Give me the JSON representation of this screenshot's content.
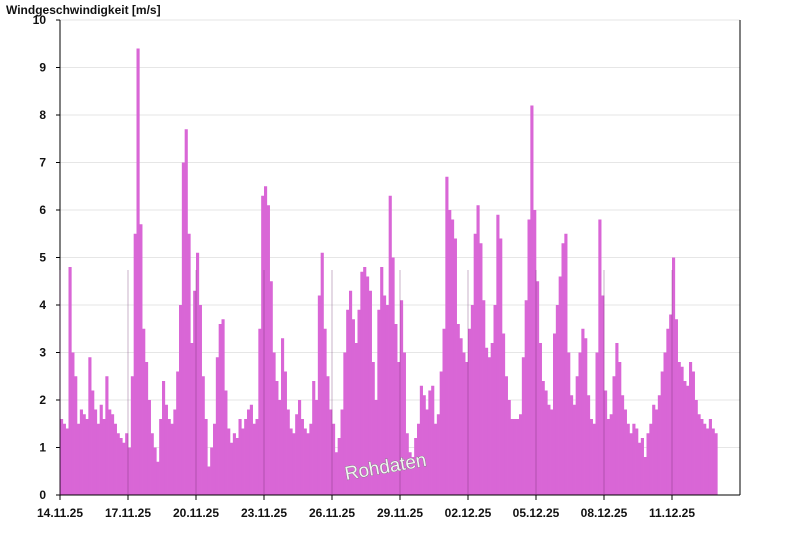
{
  "chart_data": {
    "type": "bar",
    "title": "",
    "ylabel": "Windgeschwindigkeit [m/s]",
    "xlabel": "",
    "ylim": [
      0,
      10
    ],
    "yticks": [
      "0",
      "1",
      "2",
      "3",
      "4",
      "5",
      "6",
      "7",
      "8",
      "9",
      "10"
    ],
    "xlim": [
      "2025-11-14",
      "2025-12-14"
    ],
    "xtick_labels": [
      "14.11.25",
      "17.11.25",
      "20.11.25",
      "23.11.25",
      "26.11.25",
      "29.11.25",
      "02.12.25",
      "05.12.25",
      "08.12.25",
      "11.12.25"
    ],
    "annotation": "Rohdaten",
    "grid": true,
    "series_color": "#d966d6",
    "series": [
      {
        "values_by_date": [
          {
            "date": "2025-11-14",
            "values": [
              1.6,
              1.5,
              1.4,
              4.8,
              3.0,
              2.5,
              1.5,
              1.8
            ]
          },
          {
            "date": "2025-11-15",
            "values": [
              1.7,
              1.6,
              2.9,
              2.2,
              1.8,
              1.5,
              1.9,
              1.6
            ]
          },
          {
            "date": "2025-11-16",
            "values": [
              2.5,
              1.8,
              1.7,
              1.5,
              1.3,
              1.2,
              1.1,
              1.3
            ]
          },
          {
            "date": "2025-11-17",
            "values": [
              1.0,
              2.5,
              5.5,
              9.4,
              5.7,
              3.5,
              2.8,
              2.0
            ]
          },
          {
            "date": "2025-11-18",
            "values": [
              1.3,
              1.0,
              0.7,
              1.6,
              2.4,
              1.9,
              1.6,
              1.5
            ]
          },
          {
            "date": "2025-11-19",
            "values": [
              1.8,
              2.6,
              4.0,
              7.0,
              7.7,
              5.5,
              3.2,
              4.3
            ]
          },
          {
            "date": "2025-11-20",
            "values": [
              5.1,
              4.0,
              2.5,
              1.6,
              0.6,
              1.0,
              1.5,
              2.9
            ]
          },
          {
            "date": "2025-11-21",
            "values": [
              3.6,
              3.7,
              2.2,
              1.4,
              1.1,
              1.3,
              1.2,
              1.6
            ]
          },
          {
            "date": "2025-11-22",
            "values": [
              1.4,
              1.6,
              1.8,
              1.9,
              1.5,
              1.6,
              3.5,
              6.3
            ]
          },
          {
            "date": "2025-11-23",
            "values": [
              6.5,
              6.1,
              4.5,
              3.0,
              2.4,
              2.0,
              3.3,
              2.6
            ]
          },
          {
            "date": "2025-11-24",
            "values": [
              1.8,
              1.4,
              1.3,
              1.7,
              2.0,
              1.6,
              1.4,
              1.3
            ]
          },
          {
            "date": "2025-11-25",
            "values": [
              1.5,
              2.4,
              2.0,
              4.2,
              5.1,
              3.5,
              2.5,
              1.8
            ]
          },
          {
            "date": "2025-11-26",
            "values": [
              1.5,
              0.9,
              1.2,
              1.8,
              3.0,
              3.9,
              4.3,
              3.7
            ]
          },
          {
            "date": "2025-11-27",
            "values": [
              3.2,
              3.9,
              4.7,
              4.8,
              4.6,
              4.3,
              2.8,
              2.0
            ]
          },
          {
            "date": "2025-11-28",
            "values": [
              3.9,
              4.8,
              4.2,
              4.0,
              6.3,
              5.0,
              3.6,
              2.8
            ]
          },
          {
            "date": "2025-11-29",
            "values": [
              4.1,
              3.0,
              1.3,
              0.9,
              0.8,
              1.2,
              1.5,
              2.3
            ]
          },
          {
            "date": "2025-11-30",
            "values": [
              2.1,
              1.8,
              2.2,
              2.3,
              1.5,
              1.7,
              2.6,
              3.5
            ]
          },
          {
            "date": "2025-12-01",
            "values": [
              6.7,
              6.0,
              5.8,
              5.4,
              3.6,
              3.3,
              3.0,
              2.8
            ]
          },
          {
            "date": "2025-12-02",
            "values": [
              3.5,
              4.0,
              5.5,
              6.1,
              5.3,
              4.1,
              3.1,
              2.9
            ]
          },
          {
            "date": "2025-12-03",
            "values": [
              3.2,
              4.0,
              5.9,
              5.4,
              3.4,
              2.5,
              2.0,
              1.6
            ]
          },
          {
            "date": "2025-12-04",
            "values": [
              1.6,
              1.6,
              1.7,
              2.9,
              4.1,
              5.8,
              8.2,
              6.0
            ]
          },
          {
            "date": "2025-12-05",
            "values": [
              4.5,
              3.2,
              2.4,
              2.2,
              1.9,
              1.8,
              3.4,
              4.0
            ]
          },
          {
            "date": "2025-12-06",
            "values": [
              4.6,
              5.3,
              5.5,
              3.0,
              2.1,
              1.9,
              2.5,
              3.0
            ]
          },
          {
            "date": "2025-12-07",
            "values": [
              3.5,
              3.3,
              2.1,
              1.6,
              1.5,
              3.0,
              5.8,
              4.2
            ]
          },
          {
            "date": "2025-12-08",
            "values": [
              2.2,
              1.6,
              1.7,
              2.5,
              3.2,
              2.8,
              2.1,
              1.8
            ]
          },
          {
            "date": "2025-12-09",
            "values": [
              1.5,
              1.3,
              1.5,
              1.4,
              1.1,
              1.2,
              0.8,
              1.3
            ]
          },
          {
            "date": "2025-12-10",
            "values": [
              1.5,
              1.9,
              1.8,
              2.1,
              2.6,
              3.0,
              3.5,
              3.8
            ]
          },
          {
            "date": "2025-12-11",
            "values": [
              5.0,
              3.7,
              2.8,
              2.7,
              2.4,
              2.3,
              2.8,
              2.6
            ]
          },
          {
            "date": "2025-12-12",
            "values": [
              2.0,
              1.7,
              1.6,
              1.5,
              1.4,
              1.6,
              1.4,
              1.3
            ]
          }
        ]
      }
    ]
  }
}
